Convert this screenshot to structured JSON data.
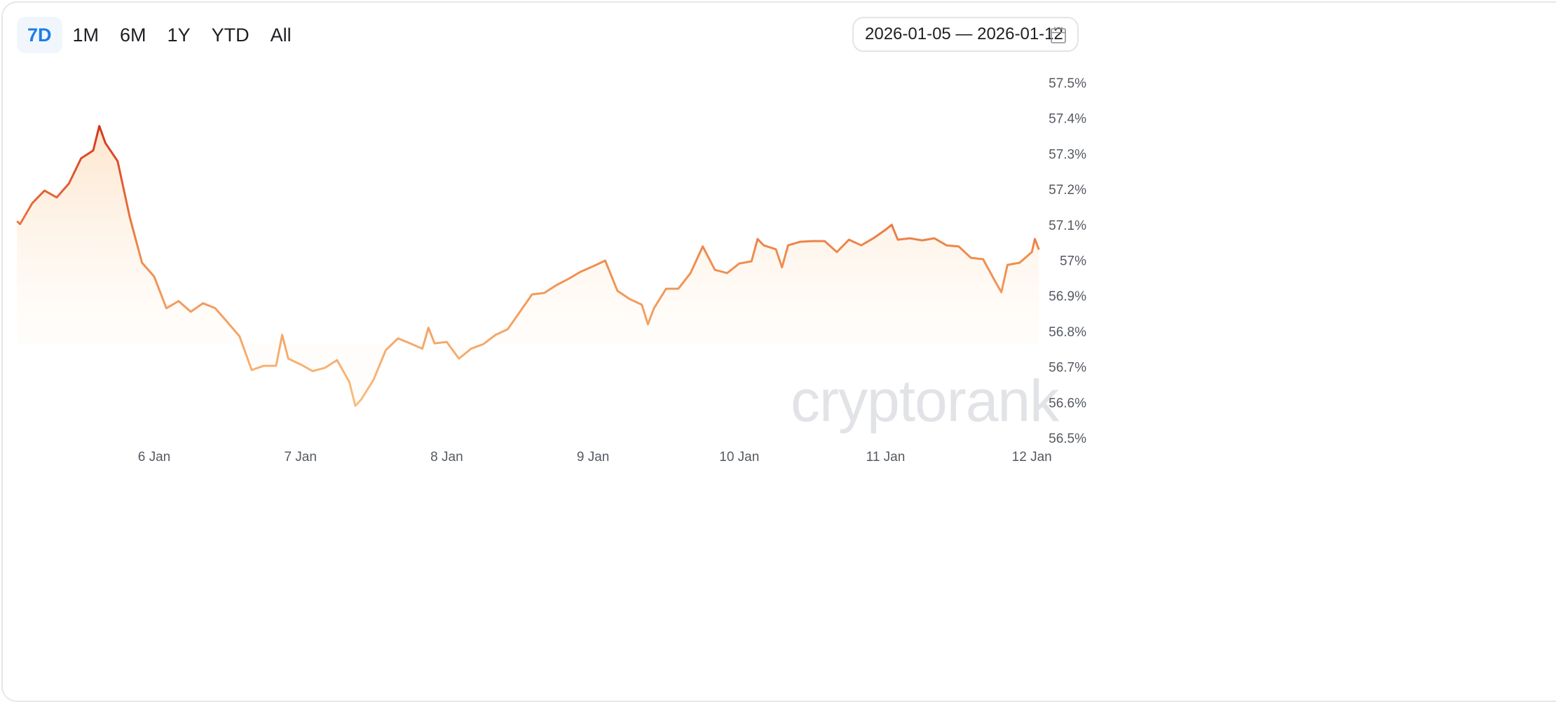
{
  "toolbar": {
    "ranges": [
      {
        "label": "7D",
        "active": true
      },
      {
        "label": "1M",
        "active": false
      },
      {
        "label": "6M",
        "active": false
      },
      {
        "label": "1Y",
        "active": false
      },
      {
        "label": "YTD",
        "active": false
      },
      {
        "label": "All",
        "active": false
      }
    ],
    "date_range": "2026-01-05 — 2026-01-12",
    "calendar_icon": "calendar-icon"
  },
  "watermark": "cryptorank",
  "colors": {
    "active": "#1a7ee6",
    "line_high": "#d8381e",
    "line_low": "#f7b878",
    "area": "#fde3c8"
  },
  "chart_data": {
    "type": "area",
    "title": "",
    "xlabel": "",
    "ylabel": "",
    "ylim": [
      56.5,
      57.5
    ],
    "grid": false,
    "y_ticks": [
      "57.5%",
      "57.4%",
      "57.3%",
      "57.2%",
      "57.1%",
      "57%",
      "56.9%",
      "56.8%",
      "56.7%",
      "56.6%",
      "56.5%"
    ],
    "y_tick_values": [
      57.5,
      57.4,
      57.3,
      57.2,
      57.1,
      57.0,
      56.9,
      56.8,
      56.7,
      56.6,
      56.5
    ],
    "x_ticks": [
      "6 Jan",
      "7 Jan",
      "8 Jan",
      "9 Jan",
      "10 Jan",
      "11 Jan",
      "12 Jan"
    ],
    "x_tick_values": [
      "2026-01-06T00:00",
      "2026-01-07T00:00",
      "2026-01-08T00:00",
      "2026-01-09T00:00",
      "2026-01-10T00:00",
      "2026-01-11T00:00",
      "2026-01-12T00:00"
    ],
    "series": [
      {
        "points": [
          [
            "2026-01-05T01:30",
            57.11
          ],
          [
            "2026-01-05T02:00",
            57.102
          ],
          [
            "2026-01-05T04:00",
            57.161
          ],
          [
            "2026-01-05T06:00",
            57.196
          ],
          [
            "2026-01-05T08:00",
            57.177
          ],
          [
            "2026-01-05T10:00",
            57.216
          ],
          [
            "2026-01-05T12:00",
            57.287
          ],
          [
            "2026-01-05T14:00",
            57.309
          ],
          [
            "2026-01-05T15:00",
            57.378
          ],
          [
            "2026-01-05T16:00",
            57.33
          ],
          [
            "2026-01-05T18:00",
            57.279
          ],
          [
            "2026-01-05T20:00",
            57.121
          ],
          [
            "2026-01-05T22:00",
            56.993
          ],
          [
            "2026-01-06T00:00",
            56.954
          ],
          [
            "2026-01-06T02:00",
            56.865
          ],
          [
            "2026-01-06T04:00",
            56.885
          ],
          [
            "2026-01-06T06:00",
            56.855
          ],
          [
            "2026-01-06T08:00",
            56.879
          ],
          [
            "2026-01-06T10:00",
            56.865
          ],
          [
            "2026-01-06T12:00",
            56.826
          ],
          [
            "2026-01-06T14:00",
            56.786
          ],
          [
            "2026-01-06T16:00",
            56.691
          ],
          [
            "2026-01-06T18:00",
            56.703
          ],
          [
            "2026-01-06T20:00",
            56.703
          ],
          [
            "2026-01-06T21:00",
            56.79
          ],
          [
            "2026-01-06T22:00",
            56.723
          ],
          [
            "2026-01-07T00:00",
            56.707
          ],
          [
            "2026-01-07T02:00",
            56.688
          ],
          [
            "2026-01-07T04:00",
            56.697
          ],
          [
            "2026-01-07T06:00",
            56.719
          ],
          [
            "2026-01-07T08:00",
            56.658
          ],
          [
            "2026-01-07T09:00",
            56.59
          ],
          [
            "2026-01-07T10:00",
            56.609
          ],
          [
            "2026-01-07T12:00",
            56.664
          ],
          [
            "2026-01-07T14:00",
            56.747
          ],
          [
            "2026-01-07T16:00",
            56.78
          ],
          [
            "2026-01-07T18:00",
            56.766
          ],
          [
            "2026-01-07T20:00",
            56.751
          ],
          [
            "2026-01-07T21:00",
            56.81
          ],
          [
            "2026-01-07T22:00",
            56.766
          ],
          [
            "2026-01-08T00:00",
            56.77
          ],
          [
            "2026-01-08T02:00",
            56.723
          ],
          [
            "2026-01-08T04:00",
            56.751
          ],
          [
            "2026-01-08T06:00",
            56.764
          ],
          [
            "2026-01-08T08:00",
            56.79
          ],
          [
            "2026-01-08T10:00",
            56.806
          ],
          [
            "2026-01-08T12:00",
            56.855
          ],
          [
            "2026-01-08T14:00",
            56.904
          ],
          [
            "2026-01-08T16:00",
            56.908
          ],
          [
            "2026-01-08T18:00",
            56.93
          ],
          [
            "2026-01-08T20:00",
            56.948
          ],
          [
            "2026-01-08T22:00",
            56.968
          ],
          [
            "2026-01-09T00:00",
            56.983
          ],
          [
            "2026-01-09T02:00",
            56.999
          ],
          [
            "2026-01-09T04:00",
            56.914
          ],
          [
            "2026-01-09T06:00",
            56.891
          ],
          [
            "2026-01-09T08:00",
            56.875
          ],
          [
            "2026-01-09T09:00",
            56.82
          ],
          [
            "2026-01-09T10:00",
            56.865
          ],
          [
            "2026-01-09T12:00",
            56.92
          ],
          [
            "2026-01-09T14:00",
            56.92
          ],
          [
            "2026-01-09T16:00",
            56.964
          ],
          [
            "2026-01-09T18:00",
            57.039
          ],
          [
            "2026-01-09T20:00",
            56.973
          ],
          [
            "2026-01-09T22:00",
            56.964
          ],
          [
            "2026-01-10T00:00",
            56.991
          ],
          [
            "2026-01-10T02:00",
            56.997
          ],
          [
            "2026-01-10T03:00",
            57.06
          ],
          [
            "2026-01-10T04:00",
            57.042
          ],
          [
            "2026-01-10T06:00",
            57.031
          ],
          [
            "2026-01-10T07:00",
            56.98
          ],
          [
            "2026-01-10T08:00",
            57.042
          ],
          [
            "2026-01-10T10:00",
            57.052
          ],
          [
            "2026-01-10T12:00",
            57.054
          ],
          [
            "2026-01-10T14:00",
            57.054
          ],
          [
            "2026-01-10T16:00",
            57.023
          ],
          [
            "2026-01-10T18:00",
            57.058
          ],
          [
            "2026-01-10T20:00",
            57.042
          ],
          [
            "2026-01-10T22:00",
            57.062
          ],
          [
            "2026-01-11T00:00",
            57.086
          ],
          [
            "2026-01-11T01:00",
            57.1
          ],
          [
            "2026-01-11T02:00",
            57.058
          ],
          [
            "2026-01-11T04:00",
            57.062
          ],
          [
            "2026-01-11T06:00",
            57.056
          ],
          [
            "2026-01-11T08:00",
            57.062
          ],
          [
            "2026-01-11T10:00",
            57.042
          ],
          [
            "2026-01-11T12:00",
            57.039
          ],
          [
            "2026-01-11T14:00",
            57.007
          ],
          [
            "2026-01-11T16:00",
            57.003
          ],
          [
            "2026-01-11T18:00",
            56.94
          ],
          [
            "2026-01-11T19:00",
            56.91
          ],
          [
            "2026-01-11T20:00",
            56.987
          ],
          [
            "2026-01-11T22:00",
            56.993
          ],
          [
            "2026-01-12T00:00",
            57.023
          ],
          [
            "2026-01-12T00:30",
            57.06
          ],
          [
            "2026-01-12T01:10",
            57.03
          ]
        ]
      }
    ]
  }
}
